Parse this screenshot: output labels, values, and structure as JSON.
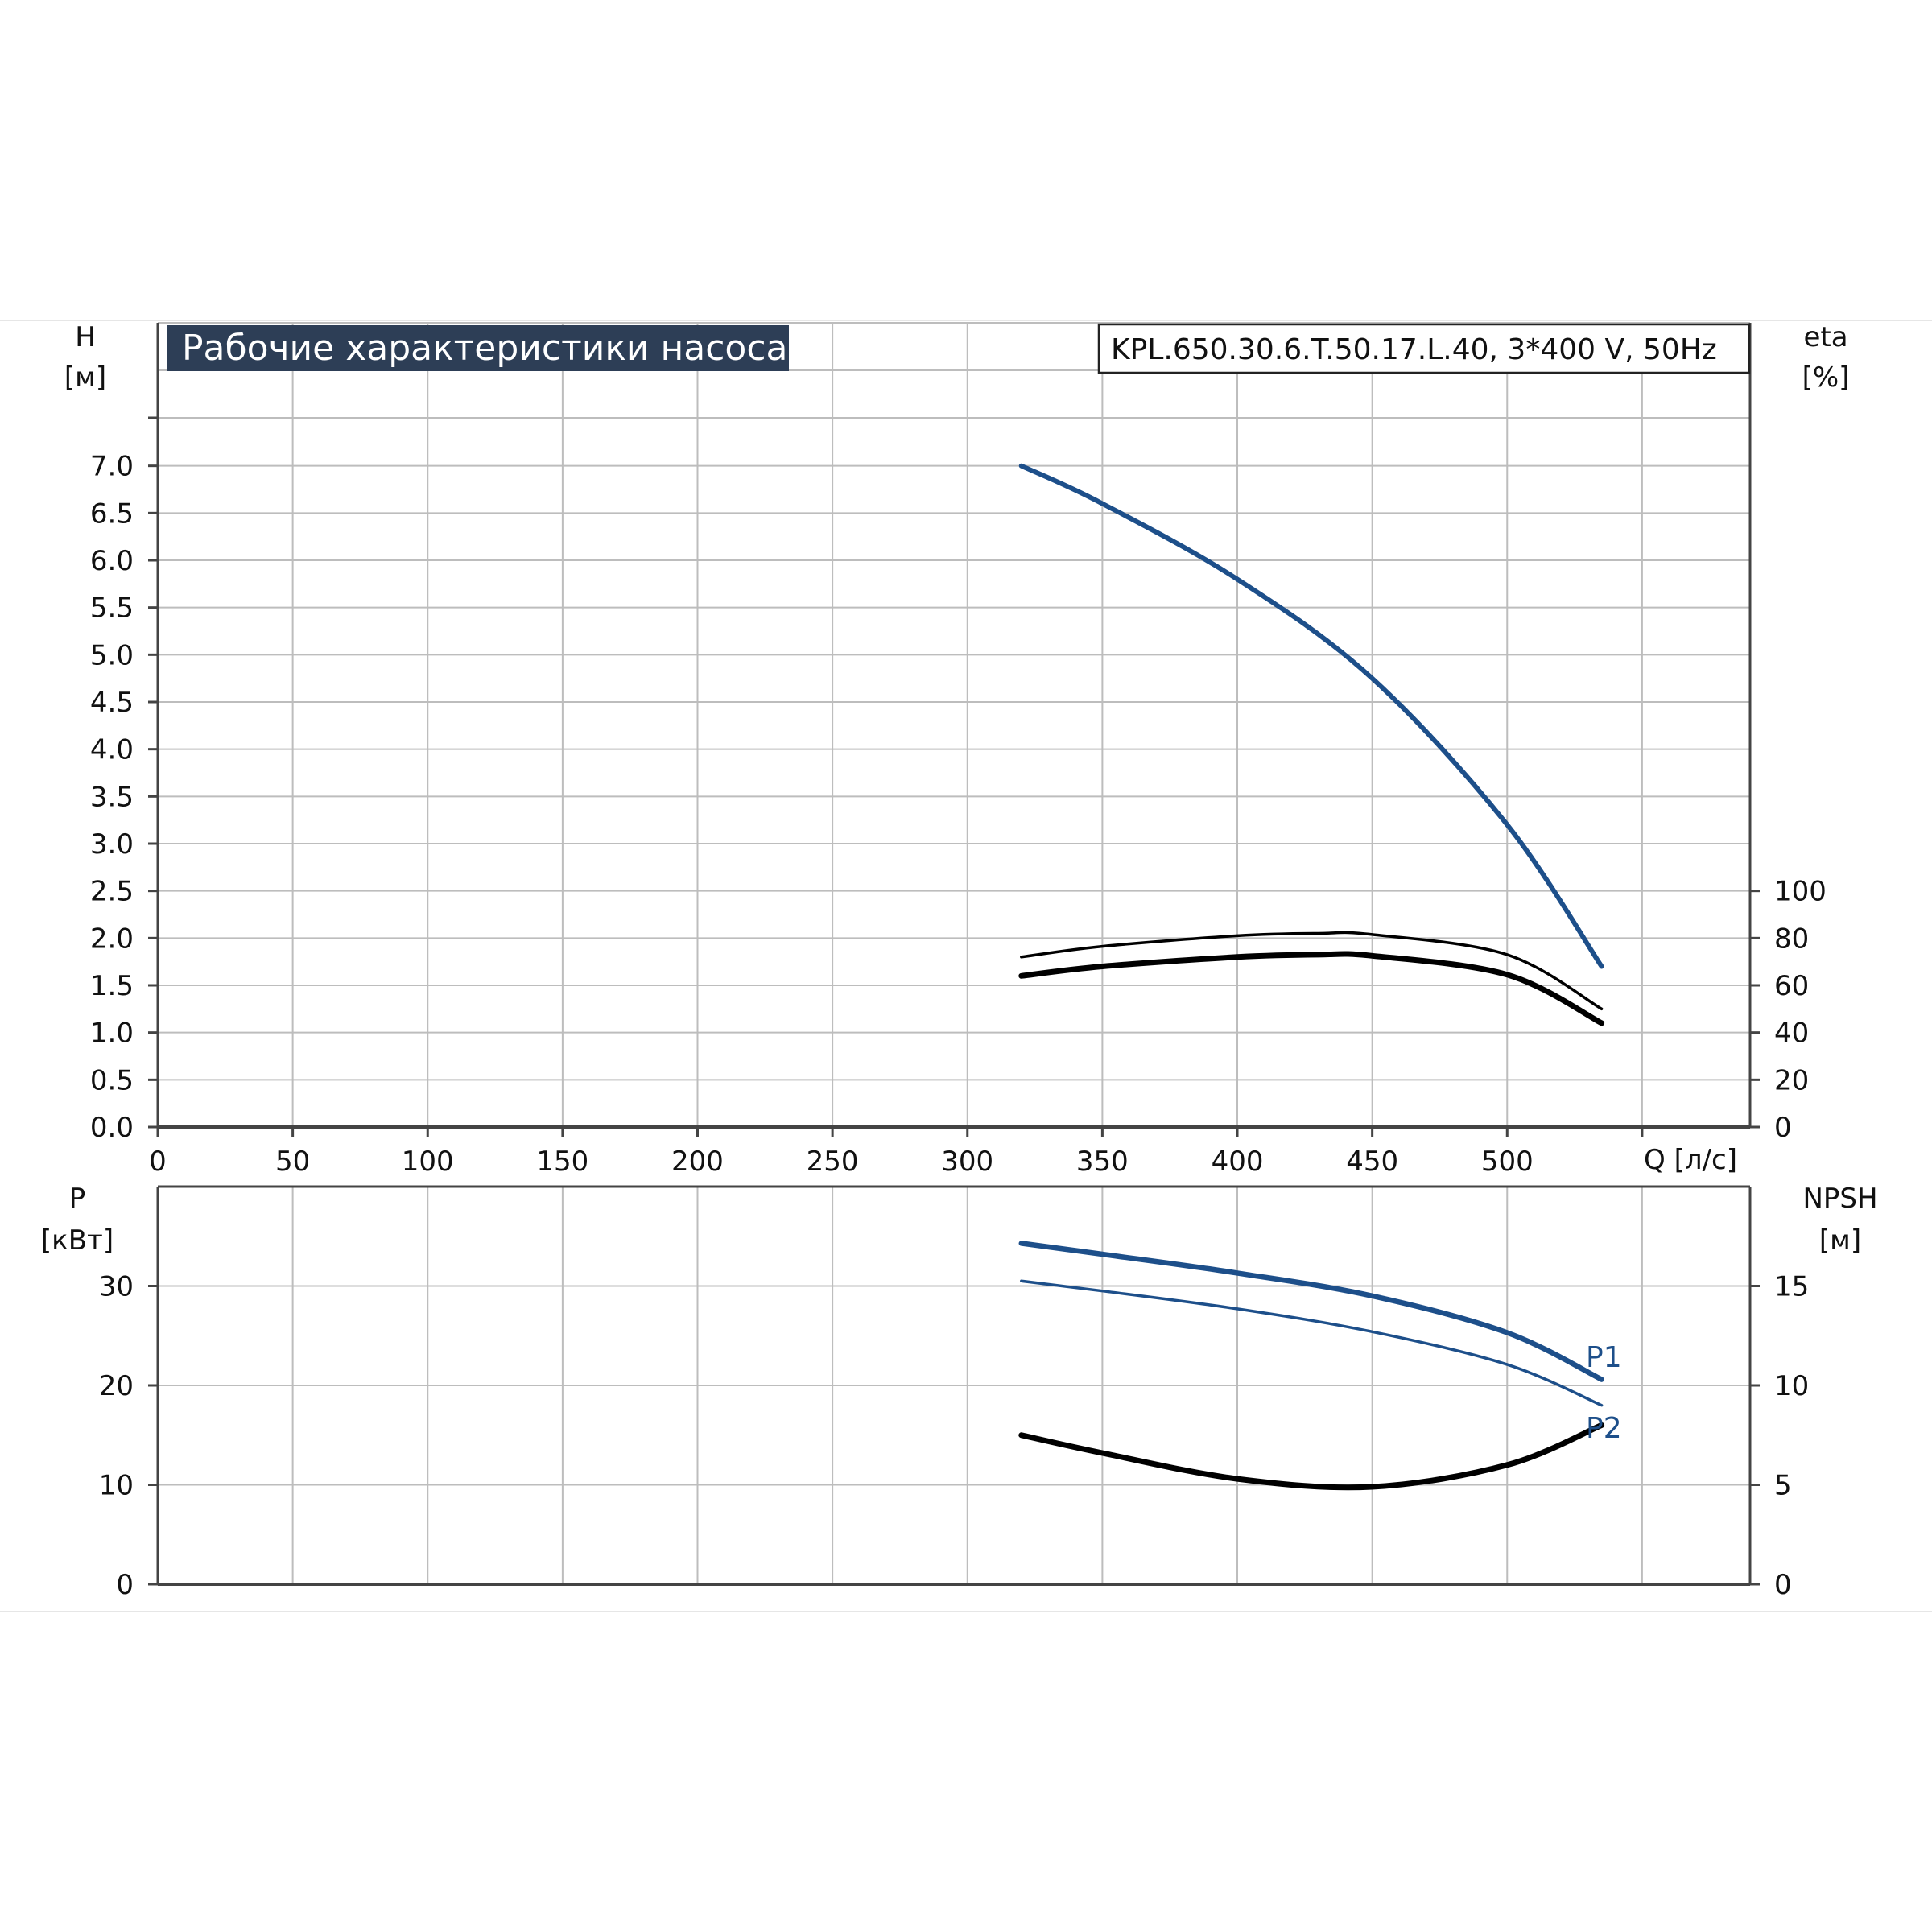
{
  "header": {
    "title": "Рабочие характеристики насоса",
    "model": "KPL.650.30.6.T.50.17.L.40, 3*400 V, 50Hz"
  },
  "colors": {
    "title_bg": "#2d3e56",
    "blue_curve": "#1d4f8a",
    "black_curve": "#000000",
    "grid": "#bdbdbd",
    "axis": "#444444"
  },
  "chart_data": [
    {
      "type": "line",
      "name": "head-efficiency-chart",
      "xlabel": "Q [л/с]",
      "x_ticks": [
        0,
        50,
        100,
        150,
        200,
        250,
        300,
        350,
        400,
        450,
        500
      ],
      "xlim": [
        0,
        590
      ],
      "y_left": {
        "label_line1": "H",
        "label_line2": "[м]",
        "ticks": [
          "0.0",
          "0.5",
          "1.0",
          "1.5",
          "2.0",
          "2.5",
          "3.0",
          "3.5",
          "4.0",
          "4.5",
          "5.0",
          "5.5",
          "6.0",
          "6.5",
          "7.0"
        ],
        "lim": [
          0,
          7.5
        ]
      },
      "y_right": {
        "label_line1": "eta",
        "label_line2": "[%]",
        "ticks": [
          "0",
          "20",
          "40",
          "60",
          "80",
          "100"
        ],
        "lim": [
          0,
          300
        ]
      },
      "grid": true,
      "series": [
        {
          "axis": "left",
          "style": "blue",
          "x": [
            320,
            350,
            400,
            450,
            500,
            535
          ],
          "y": [
            7.0,
            6.6,
            5.8,
            4.75,
            3.2,
            1.7
          ]
        },
        {
          "axis": "right",
          "style": "black-thin",
          "x": [
            320,
            350,
            400,
            430,
            450,
            500,
            535
          ],
          "y": [
            72,
            76.5,
            81,
            82,
            81.5,
            73,
            50
          ]
        },
        {
          "axis": "right",
          "style": "black-thick",
          "x": [
            320,
            350,
            400,
            430,
            450,
            500,
            535
          ],
          "y": [
            64,
            68,
            72,
            73,
            72.5,
            64.5,
            44
          ]
        }
      ]
    },
    {
      "type": "line",
      "name": "power-npsh-chart",
      "xlim": [
        0,
        590
      ],
      "y_left": {
        "label_line1": "P",
        "label_line2": "[кВт]",
        "ticks": [
          "0",
          "10",
          "20",
          "30"
        ],
        "lim": [
          0,
          40
        ]
      },
      "y_right": {
        "label_line1": "NPSH",
        "label_line2": "[м]",
        "ticks": [
          "0",
          "5",
          "10",
          "15"
        ],
        "lim": [
          0,
          20
        ]
      },
      "grid": true,
      "series": [
        {
          "name": "P1",
          "axis": "left",
          "style": "blue-thick",
          "x": [
            320,
            350,
            400,
            450,
            500,
            535
          ],
          "y": [
            34.3,
            33.2,
            31.3,
            29.0,
            25.3,
            20.6
          ]
        },
        {
          "name": "P2",
          "axis": "left",
          "style": "blue-thin",
          "x": [
            320,
            350,
            400,
            450,
            500,
            535
          ],
          "y": [
            30.5,
            29.5,
            27.7,
            25.4,
            22.1,
            18.0
          ]
        },
        {
          "axis": "right",
          "style": "black-thick",
          "x": [
            320,
            350,
            400,
            450,
            500,
            535
          ],
          "y": [
            7.5,
            6.6,
            5.3,
            4.9,
            6.0,
            8.0
          ]
        }
      ]
    }
  ]
}
